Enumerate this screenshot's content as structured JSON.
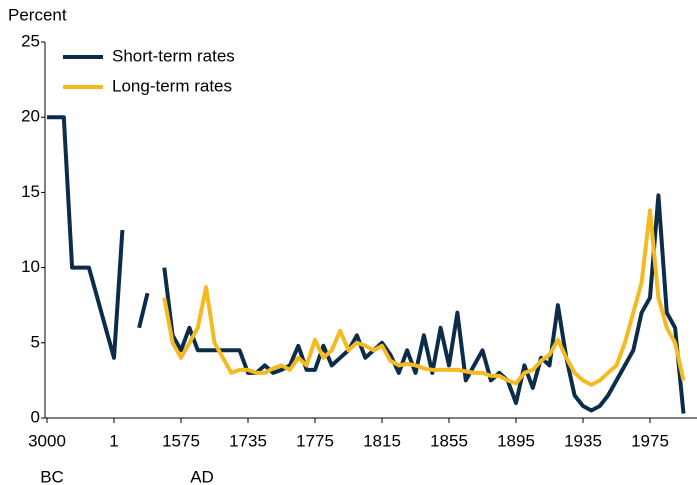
{
  "chart_data": {
    "type": "line",
    "y_label": "Percent",
    "annotations": [
      "BC",
      "AD"
    ],
    "categories": [
      "3000",
      null,
      null,
      null,
      null,
      null,
      null,
      null,
      "1",
      null,
      null,
      null,
      null,
      null,
      null,
      null,
      "1575",
      null,
      null,
      null,
      null,
      null,
      null,
      null,
      "1735",
      null,
      null,
      null,
      null,
      null,
      null,
      null,
      "1775",
      null,
      null,
      null,
      null,
      null,
      null,
      null,
      "1815",
      null,
      null,
      null,
      null,
      null,
      null,
      null,
      "1855",
      null,
      null,
      null,
      null,
      null,
      null,
      null,
      "1895",
      null,
      null,
      null,
      null,
      null,
      null,
      null,
      "1935",
      null,
      null,
      null,
      null,
      null,
      null,
      null,
      "1975",
      null,
      null,
      null,
      null
    ],
    "series": [
      {
        "name": "Short-term rates",
        "color": "#0d2c4a",
        "values": [
          20,
          20,
          20,
          10,
          10,
          10,
          8,
          6,
          4,
          12.5,
          null,
          6,
          8.3,
          null,
          10,
          5.5,
          4.5,
          6,
          4.5,
          4.5,
          4.5,
          4.5,
          4.5,
          4.5,
          3,
          3,
          3.5,
          3,
          3.2,
          3.5,
          4.8,
          3.2,
          3.2,
          4.8,
          3.5,
          4,
          4.5,
          5.5,
          4,
          4.5,
          5,
          4.2,
          3,
          4.5,
          3,
          5.5,
          3,
          6,
          3.5,
          7,
          2.5,
          3.5,
          4.5,
          2.5,
          3,
          2.5,
          1,
          3.5,
          2,
          4,
          3.5,
          7.5,
          4,
          1.5,
          0.8,
          0.5,
          0.8,
          1.5,
          2.5,
          3.5,
          4.5,
          7,
          8,
          14.8,
          7,
          6,
          0.3
        ]
      },
      {
        "name": "Long-term rates",
        "color": "#f5b921",
        "values": [
          null,
          null,
          null,
          null,
          null,
          null,
          null,
          null,
          null,
          null,
          null,
          null,
          null,
          null,
          8,
          5,
          4,
          5,
          6,
          8.7,
          5,
          4,
          3,
          3.2,
          3.2,
          3,
          3,
          3.3,
          3.5,
          3.2,
          4,
          3.5,
          5.2,
          4,
          4.5,
          5.8,
          4.5,
          5,
          4.8,
          4.5,
          4.8,
          3.8,
          3.5,
          3.6,
          3.5,
          3.3,
          3.2,
          3.2,
          3.2,
          3.2,
          3.1,
          3,
          3,
          2.8,
          2.8,
          2.5,
          2.3,
          3,
          3.2,
          3.8,
          4.2,
          5.2,
          4,
          3,
          2.5,
          2.2,
          2.5,
          3,
          3.5,
          5,
          7,
          9,
          13.8,
          8,
          6,
          5,
          2.5
        ]
      }
    ],
    "ylim": [
      0,
      25
    ],
    "yticks": [
      0,
      5,
      10,
      15,
      20,
      25
    ],
    "grid": false,
    "legend": "top-left"
  }
}
